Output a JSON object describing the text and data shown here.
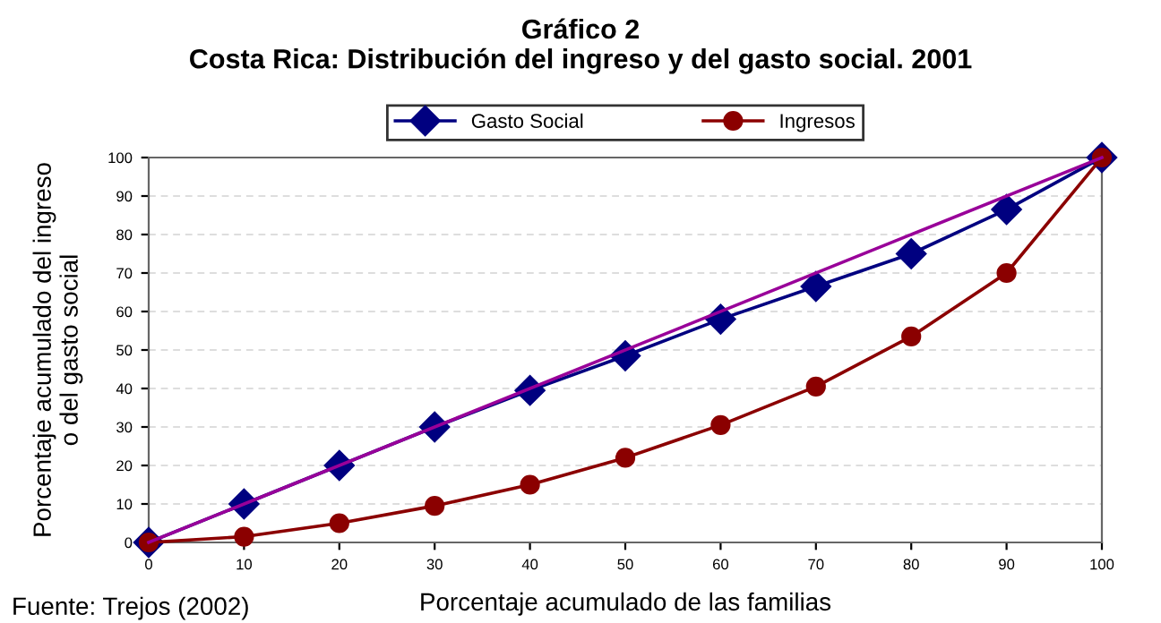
{
  "chart_data": {
    "type": "line",
    "title": "Gráfico 2\nCosta Rica: Distribución del ingreso y del gasto social. 2001",
    "xlabel": "Porcentaje acumulado de las familias",
    "ylabel": "Porcentaje acumulado del ingreso\no del gasto social",
    "x": [
      0,
      10,
      20,
      30,
      40,
      50,
      60,
      70,
      80,
      90,
      100
    ],
    "series": [
      {
        "name": "Gasto Social",
        "color": "#000080",
        "marker": "diamond",
        "values": [
          0,
          10,
          20,
          30,
          39.5,
          48.5,
          58,
          66.5,
          75,
          86.5,
          100
        ]
      },
      {
        "name": "Ingresos",
        "color": "#8b0000",
        "marker": "circle",
        "values": [
          0,
          1.5,
          5,
          9.5,
          15,
          22,
          30.5,
          40.5,
          53.5,
          70,
          100
        ]
      },
      {
        "color": "#990099",
        "marker": "none",
        "x": [
          0,
          100
        ],
        "values": [
          0,
          100
        ]
      }
    ],
    "xlim": [
      0,
      100
    ],
    "ylim": [
      0,
      100
    ],
    "xticks": [
      0,
      10,
      20,
      30,
      40,
      50,
      60,
      70,
      80,
      90,
      100
    ],
    "yticks": [
      0,
      10,
      20,
      30,
      40,
      50,
      60,
      70,
      80,
      90,
      100
    ],
    "grid": "y",
    "legend": "top",
    "line_style": "solid",
    "annotations": [
      "Fuente: Trejos (2002)"
    ]
  }
}
